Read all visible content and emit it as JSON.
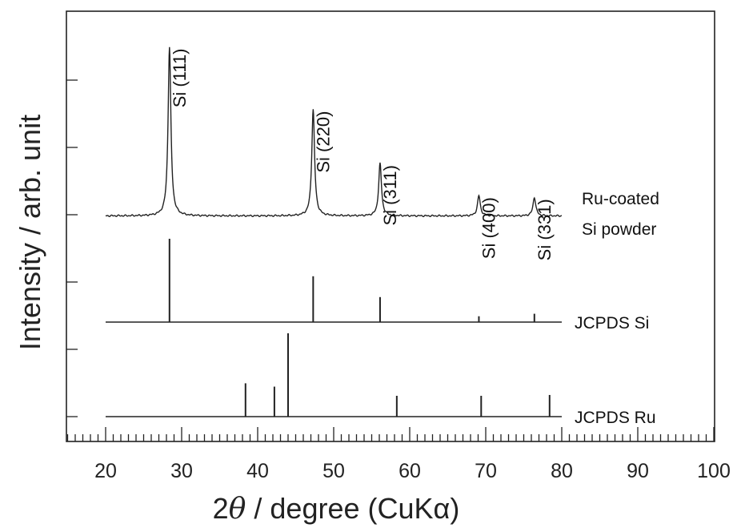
{
  "chart_data": {
    "type": "line",
    "xlabel_prefix": "2",
    "xlabel_theta": "θ",
    "xlabel_suffix": " / degree  (CuKα)",
    "ylabel": "Intensity / arb. unit",
    "xlim": [
      15,
      100
    ],
    "x_ticks": [
      "20",
      "30",
      "40",
      "50",
      "60",
      "70",
      "80",
      "90",
      "100"
    ],
    "series": [
      {
        "name_lines": [
          "Ru-coated",
          "Si powder"
        ],
        "kind": "profile",
        "x_range": [
          20,
          80
        ],
        "peaks": [
          {
            "x": 28.4,
            "height": 1.0,
            "label": "Si (111)"
          },
          {
            "x": 47.3,
            "height": 0.63,
            "label": "Si (220)"
          },
          {
            "x": 56.1,
            "height": 0.31,
            "label": "Si (311)"
          },
          {
            "x": 69.1,
            "height": 0.12,
            "label": "Si (400)"
          },
          {
            "x": 76.4,
            "height": 0.11,
            "label": "Si (331)"
          }
        ]
      },
      {
        "name_lines": [
          "JCPDS Si"
        ],
        "kind": "sticks",
        "x_range": [
          20,
          80
        ],
        "peaks": [
          {
            "x": 28.4,
            "height": 1.0
          },
          {
            "x": 47.3,
            "height": 0.55
          },
          {
            "x": 56.1,
            "height": 0.3
          },
          {
            "x": 69.1,
            "height": 0.07
          },
          {
            "x": 76.4,
            "height": 0.1
          }
        ]
      },
      {
        "name_lines": [
          "JCPDS Ru"
        ],
        "kind": "sticks",
        "x_range": [
          20,
          80
        ],
        "peaks": [
          {
            "x": 38.4,
            "height": 0.4
          },
          {
            "x": 42.2,
            "height": 0.36
          },
          {
            "x": 44.0,
            "height": 1.0
          },
          {
            "x": 58.3,
            "height": 0.25
          },
          {
            "x": 69.4,
            "height": 0.25
          },
          {
            "x": 78.4,
            "height": 0.26
          }
        ]
      }
    ]
  }
}
